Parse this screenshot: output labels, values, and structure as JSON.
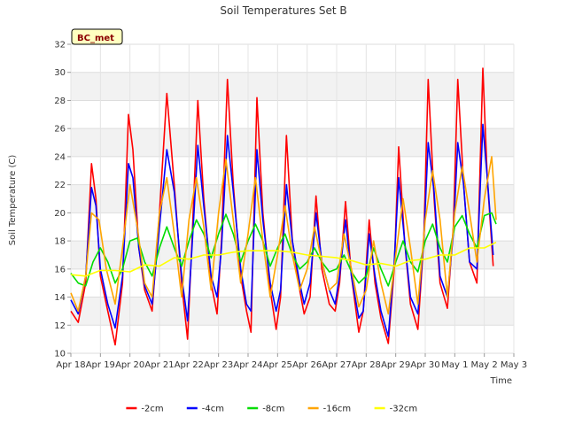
{
  "chart_data": {
    "type": "line",
    "title": "Soil Temperatures Set B",
    "xlabel": "Time",
    "ylabel": "Soil Temperature (C)",
    "badge": "BC_met",
    "ylim": [
      10,
      32
    ],
    "yticks": [
      10,
      12,
      14,
      16,
      18,
      20,
      22,
      24,
      26,
      28,
      30,
      32
    ],
    "xlim": [
      0,
      15
    ],
    "xticks": [
      0,
      1,
      2,
      3,
      4,
      5,
      6,
      7,
      8,
      9,
      10,
      11,
      12,
      13,
      14,
      15
    ],
    "xtick_labels": [
      "Apr 18",
      "Apr 19",
      "Apr 20",
      "Apr 21",
      "Apr 22",
      "Apr 23",
      "Apr 24",
      "Apr 25",
      "Apr 26",
      "Apr 27",
      "Apr 28",
      "Apr 29",
      "Apr 30",
      "May 1",
      "May 2",
      "May 3"
    ],
    "grid": true,
    "legend_position": "bottom",
    "series": [
      {
        "name": "-2cm",
        "color": "#ff0000",
        "x": [
          0.0,
          0.25,
          0.5,
          0.7,
          0.85,
          1.0,
          1.25,
          1.5,
          1.75,
          1.95,
          2.1,
          2.3,
          2.5,
          2.75,
          3.0,
          3.25,
          3.5,
          3.75,
          3.95,
          4.1,
          4.3,
          4.5,
          4.75,
          4.95,
          5.1,
          5.3,
          5.5,
          5.75,
          5.95,
          6.1,
          6.3,
          6.5,
          6.75,
          6.95,
          7.1,
          7.3,
          7.5,
          7.75,
          7.9,
          8.1,
          8.3,
          8.5,
          8.75,
          8.95,
          9.1,
          9.3,
          9.5,
          9.75,
          9.9,
          10.1,
          10.3,
          10.5,
          10.75,
          10.95,
          11.1,
          11.3,
          11.5,
          11.75,
          11.95,
          12.1,
          12.3,
          12.5,
          12.75,
          12.95,
          13.1,
          13.3,
          13.5,
          13.75,
          13.95,
          14.1,
          14.3
        ],
        "y": [
          13.0,
          12.2,
          15.0,
          23.5,
          21.0,
          15.5,
          13.0,
          10.6,
          15.0,
          27.0,
          24.5,
          17.5,
          14.5,
          13.0,
          20.0,
          28.5,
          22.0,
          15.0,
          11.0,
          18.0,
          28.0,
          21.0,
          15.0,
          12.8,
          18.0,
          29.5,
          22.0,
          15.5,
          13.0,
          11.5,
          28.2,
          20.0,
          14.5,
          11.7,
          14.0,
          25.5,
          18.0,
          14.5,
          12.8,
          14.0,
          21.2,
          16.0,
          13.5,
          13.0,
          15.0,
          20.8,
          15.5,
          11.5,
          13.0,
          19.5,
          15.0,
          12.5,
          10.7,
          16.0,
          24.7,
          18.0,
          13.5,
          11.7,
          18.0,
          29.5,
          21.0,
          15.0,
          13.2,
          19.0,
          29.5,
          22.0,
          16.5,
          15.0,
          30.3,
          22.5,
          16.2
        ]
      },
      {
        "name": "-4cm",
        "color": "#0000ff",
        "x": [
          0.0,
          0.25,
          0.5,
          0.7,
          0.85,
          1.0,
          1.25,
          1.5,
          1.75,
          1.95,
          2.1,
          2.3,
          2.5,
          2.75,
          3.0,
          3.25,
          3.5,
          3.75,
          3.95,
          4.1,
          4.3,
          4.5,
          4.75,
          4.95,
          5.1,
          5.3,
          5.5,
          5.75,
          5.95,
          6.1,
          6.3,
          6.5,
          6.75,
          6.95,
          7.1,
          7.3,
          7.5,
          7.75,
          7.9,
          8.1,
          8.3,
          8.5,
          8.75,
          8.95,
          9.1,
          9.3,
          9.5,
          9.75,
          9.9,
          10.1,
          10.3,
          10.5,
          10.75,
          10.95,
          11.1,
          11.3,
          11.5,
          11.75,
          11.95,
          12.1,
          12.3,
          12.5,
          12.75,
          12.95,
          13.1,
          13.3,
          13.5,
          13.75,
          13.95,
          14.1,
          14.3
        ],
        "y": [
          13.8,
          12.8,
          15.5,
          21.8,
          20.5,
          16.0,
          13.5,
          11.8,
          15.5,
          23.5,
          22.5,
          17.5,
          14.8,
          13.5,
          19.0,
          24.5,
          21.5,
          15.5,
          12.3,
          17.5,
          24.8,
          20.5,
          15.5,
          14.0,
          17.5,
          25.5,
          21.5,
          16.0,
          13.5,
          13.0,
          24.5,
          19.5,
          15.0,
          13.0,
          14.5,
          22.0,
          18.0,
          15.0,
          13.5,
          15.0,
          20.0,
          16.5,
          14.5,
          13.5,
          15.5,
          19.5,
          15.5,
          12.5,
          13.0,
          18.5,
          15.5,
          13.0,
          11.2,
          16.5,
          22.5,
          18.0,
          14.0,
          12.8,
          18.0,
          25.0,
          21.5,
          15.5,
          14.0,
          18.5,
          25.0,
          22.0,
          16.5,
          16.0,
          26.3,
          22.5,
          17.0
        ]
      },
      {
        "name": "-8cm",
        "color": "#00dd00",
        "x": [
          0.0,
          0.25,
          0.5,
          0.75,
          1.0,
          1.25,
          1.5,
          1.75,
          2.0,
          2.25,
          2.5,
          2.75,
          3.0,
          3.25,
          3.5,
          3.75,
          4.0,
          4.25,
          4.5,
          4.75,
          5.0,
          5.25,
          5.5,
          5.75,
          6.0,
          6.25,
          6.5,
          6.75,
          7.0,
          7.25,
          7.5,
          7.75,
          8.0,
          8.25,
          8.5,
          8.75,
          9.0,
          9.25,
          9.5,
          9.75,
          10.0,
          10.25,
          10.5,
          10.75,
          11.0,
          11.25,
          11.5,
          11.75,
          12.0,
          12.25,
          12.5,
          12.75,
          13.0,
          13.25,
          13.5,
          13.75,
          14.0,
          14.25,
          14.4
        ],
        "y": [
          15.7,
          15.0,
          14.8,
          16.5,
          17.5,
          16.5,
          15.0,
          16.0,
          18.0,
          18.2,
          16.5,
          15.5,
          17.5,
          19.0,
          17.5,
          16.2,
          18.0,
          19.5,
          18.5,
          16.8,
          18.5,
          19.9,
          18.5,
          16.5,
          18.0,
          19.2,
          18.0,
          16.2,
          17.5,
          18.5,
          17.0,
          16.0,
          16.5,
          17.5,
          16.5,
          15.8,
          16.0,
          17.0,
          15.8,
          15.0,
          15.5,
          17.5,
          16.0,
          14.8,
          16.5,
          18.0,
          16.5,
          15.8,
          18.0,
          19.2,
          17.5,
          16.5,
          19.0,
          19.8,
          18.5,
          17.5,
          19.8,
          20.0,
          19.2
        ]
      },
      {
        "name": "-16cm",
        "color": "#ffa500",
        "x": [
          0.0,
          0.25,
          0.5,
          0.7,
          0.95,
          1.2,
          1.5,
          1.75,
          2.0,
          2.25,
          2.5,
          2.75,
          3.0,
          3.25,
          3.5,
          3.75,
          4.0,
          4.25,
          4.5,
          4.75,
          5.0,
          5.25,
          5.5,
          5.75,
          6.0,
          6.25,
          6.5,
          6.75,
          7.0,
          7.25,
          7.5,
          7.75,
          8.0,
          8.25,
          8.5,
          8.75,
          9.0,
          9.25,
          9.5,
          9.75,
          10.0,
          10.25,
          10.5,
          10.75,
          11.0,
          11.25,
          11.5,
          11.75,
          12.0,
          12.25,
          12.5,
          12.75,
          13.0,
          13.25,
          13.5,
          13.75,
          14.0,
          14.25,
          14.4
        ],
        "y": [
          14.3,
          13.0,
          15.5,
          20.0,
          19.5,
          16.0,
          13.5,
          17.5,
          22.0,
          19.0,
          15.0,
          14.0,
          20.0,
          22.5,
          18.5,
          14.0,
          19.5,
          22.5,
          19.0,
          14.5,
          20.0,
          23.8,
          19.5,
          15.0,
          18.5,
          22.5,
          18.0,
          14.0,
          17.0,
          20.5,
          17.0,
          14.5,
          16.0,
          19.0,
          16.5,
          14.5,
          15.0,
          18.5,
          16.0,
          13.3,
          14.5,
          18.0,
          15.0,
          12.8,
          17.0,
          21.0,
          17.5,
          13.5,
          19.5,
          23.0,
          19.5,
          14.0,
          20.0,
          23.3,
          20.0,
          16.5,
          21.0,
          24.0,
          19.5
        ]
      },
      {
        "name": "-32cm",
        "color": "#ffff00",
        "x": [
          0.0,
          0.5,
          1.0,
          1.5,
          2.0,
          2.5,
          3.0,
          3.5,
          4.0,
          4.5,
          5.0,
          5.5,
          6.0,
          6.5,
          7.0,
          7.5,
          8.0,
          8.5,
          9.0,
          9.5,
          10.0,
          10.5,
          11.0,
          11.5,
          12.0,
          12.5,
          13.0,
          13.5,
          14.0,
          14.4
        ],
        "y": [
          15.6,
          15.5,
          15.9,
          15.9,
          15.8,
          16.3,
          16.2,
          16.8,
          16.7,
          17.0,
          17.0,
          17.2,
          17.3,
          17.3,
          17.3,
          17.2,
          17.0,
          16.9,
          16.8,
          16.6,
          16.3,
          16.4,
          16.2,
          16.6,
          16.7,
          17.0,
          17.0,
          17.5,
          17.5,
          17.9
        ]
      }
    ]
  }
}
